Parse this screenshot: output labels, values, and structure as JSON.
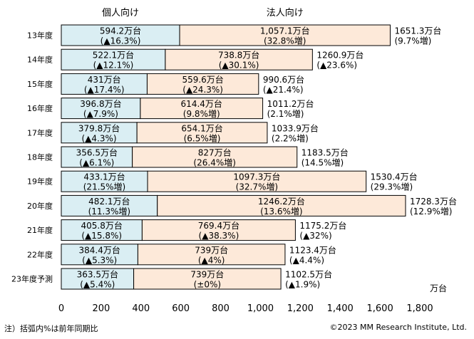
{
  "chart_data": {
    "type": "bar",
    "orientation": "horizontal",
    "stacked": true,
    "categories": [
      "13年度",
      "14年度",
      "15年度",
      "16年度",
      "17年度",
      "18年度",
      "19年度",
      "20年度",
      "21年度",
      "22年度",
      "23年度予測"
    ],
    "series": [
      {
        "name": "個人向け",
        "color": "#daeef3",
        "values": [
          594.2,
          522.1,
          431,
          396.8,
          379.8,
          356.5,
          433.1,
          482.1,
          405.8,
          384.4,
          363.5
        ],
        "labels": [
          "594.2万台",
          "522.1万台",
          "431万台",
          "396.8万台",
          "379.8万台",
          "356.5万台",
          "433.1万台",
          "482.1万台",
          "405.8万台",
          "384.4万台",
          "363.5万台"
        ],
        "changes": [
          "(▲16.3%)",
          "(▲12.1%)",
          "(▲17.4%)",
          "(▲7.9%)",
          "(▲4.3%)",
          "(▲6.1%)",
          "(21.5%増)",
          "(11.3%増)",
          "(▲15.8%)",
          "(▲5.3%)",
          "(▲5.4%)"
        ]
      },
      {
        "name": "法人向け",
        "color": "#fde9d9",
        "values": [
          1057.1,
          738.8,
          559.6,
          614.4,
          654.1,
          827,
          1097.3,
          1246.2,
          769.4,
          739,
          739
        ],
        "labels": [
          "1,057.1万台",
          "738.8万台",
          "559.6万台",
          "614.4万台",
          "654.1万台",
          "827万台",
          "1097.3万台",
          "1246.2万台",
          "769.4万台",
          "739万台",
          "739万台"
        ],
        "changes": [
          "(32.8%増)",
          "(▲30.1%)",
          "(▲24.3%)",
          "(9.8%増)",
          "(6.5%増)",
          "(26.4%増)",
          "(32.7%増)",
          "(13.6%増)",
          "(▲38.3%)",
          "(▲4%)",
          "(±0%)"
        ]
      }
    ],
    "totals": {
      "values": [
        1651.3,
        1260.9,
        990.6,
        1011.2,
        1033.9,
        1183.5,
        1530.4,
        1728.3,
        1175.2,
        1123.4,
        1102.5
      ],
      "labels": [
        "1651.3万台",
        "1260.9万台",
        "990.6万台",
        "1011.2万台",
        "1033.9万台",
        "1183.5万台",
        "1530.4万台",
        "1728.3万台",
        "1175.2万台",
        "1123.4万台",
        "1102.5万台"
      ],
      "changes": [
        "(9.7%増)",
        "(▲23.6%)",
        "(▲21.4%)",
        "(2.1%増)",
        "(2.2%増)",
        "(14.5%増)",
        "(29.3%増)",
        "(12.9%増)",
        "(▲32%)",
        "(▲4.4%)",
        "(▲1.9%)"
      ]
    },
    "xlim": [
      0,
      1800
    ],
    "xticks": [
      0,
      200,
      400,
      600,
      800,
      1000,
      1200,
      1400,
      1600,
      1800
    ],
    "xtick_labels": [
      "0",
      "200",
      "400",
      "600",
      "800",
      "1,000",
      "1,200",
      "1,400",
      "1,600",
      "1,800"
    ],
    "xlabel": "万台",
    "grid": false,
    "legend": "top"
  },
  "footer": {
    "note": "注）括弧内%は前年同期比",
    "copyright": "©2023 MM Research Institute, Ltd."
  }
}
